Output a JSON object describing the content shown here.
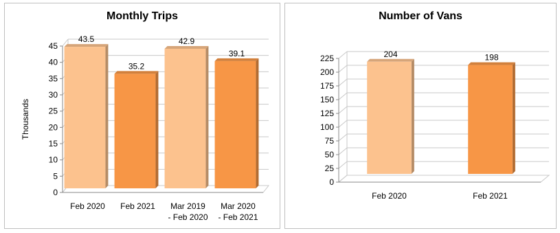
{
  "chart_data": [
    {
      "type": "bar",
      "title": "Monthly Trips",
      "ylabel": "Thousands",
      "xlabel": "",
      "ylim": [
        0,
        45
      ],
      "yticks": [
        0,
        5,
        10,
        15,
        20,
        25,
        30,
        35,
        40,
        45
      ],
      "categories": [
        [
          "Feb 2020"
        ],
        [
          "Feb 2021"
        ],
        [
          "Mar 2019",
          "- Feb 2020"
        ],
        [
          "Mar 2020",
          "- Feb 2021"
        ]
      ],
      "values": [
        43.5,
        35.2,
        42.9,
        39.1
      ],
      "value_labels": [
        "43.5",
        "35.2",
        "42.9",
        "39.1"
      ],
      "colors": [
        "#fcc28e",
        "#f79646",
        "#fcc28e",
        "#f79646"
      ],
      "grid": true,
      "legend": "none"
    },
    {
      "type": "bar",
      "title": "Number of Vans",
      "ylabel": "",
      "xlabel": "",
      "ylim": [
        0,
        225
      ],
      "yticks": [
        0,
        25,
        50,
        75,
        100,
        125,
        150,
        175,
        200,
        225
      ],
      "categories": [
        [
          "Feb 2020"
        ],
        [
          "Feb 2021"
        ]
      ],
      "values": [
        204,
        198
      ],
      "value_labels": [
        "204",
        "198"
      ],
      "colors": [
        "#fcc28e",
        "#f79646"
      ],
      "grid": true,
      "legend": "none"
    }
  ]
}
